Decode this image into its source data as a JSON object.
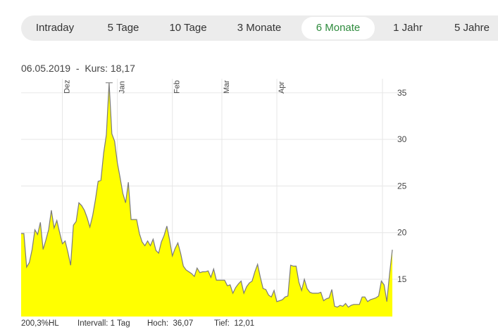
{
  "tabs": [
    {
      "label": "Intraday",
      "active": false
    },
    {
      "label": "5 Tage",
      "active": false
    },
    {
      "label": "10 Tage",
      "active": false
    },
    {
      "label": "3 Monate",
      "active": false
    },
    {
      "label": "6 Monate",
      "active": true
    },
    {
      "label": "1 Jahr",
      "active": false
    },
    {
      "label": "5 Jahre",
      "active": false
    }
  ],
  "info": {
    "date": "06.05.2019",
    "separator": "-",
    "kurs_label": "Kurs:",
    "kurs_value": "18,17"
  },
  "footer": {
    "change": "200,3%HL",
    "interval_label": "Intervall:",
    "interval_value": "1 Tag",
    "high_label": "Hoch:",
    "high_value": "36,07",
    "low_label": "Tief:",
    "low_value": "12,01"
  },
  "colors": {
    "fill": "#ffff00",
    "line": "#7a7a7a",
    "accent": "#2e8b3d",
    "tab_bg": "#ececec",
    "grid": "#e6e6e6"
  },
  "chart_data": {
    "type": "area",
    "ylim": [
      11,
      36.5
    ],
    "yticks": [
      15,
      20,
      25,
      30,
      35
    ],
    "ytick_labels": [
      "15",
      "20",
      "25",
      "30",
      "35"
    ],
    "month_labels": [
      {
        "label": "Dez",
        "index": 15
      },
      {
        "label": "Jan",
        "index": 35
      },
      {
        "label": "Feb",
        "index": 55
      },
      {
        "label": "Mar",
        "index": 73
      },
      {
        "label": "Apr",
        "index": 93
      }
    ],
    "values": [
      19.9,
      19.9,
      16.3,
      16.8,
      18.2,
      20.3,
      19.8,
      21.1,
      18.2,
      19.2,
      20.3,
      22.4,
      20.5,
      21.3,
      20.0,
      18.8,
      19.1,
      17.9,
      16.5,
      20.8,
      21.2,
      23.2,
      22.9,
      22.4,
      21.6,
      20.6,
      21.8,
      23.5,
      25.5,
      25.6,
      28.5,
      30.5,
      36.07,
      30.6,
      29.8,
      27.5,
      25.9,
      24.2,
      23.2,
      25.4,
      21.4,
      21.4,
      21.4,
      19.9,
      19.0,
      18.6,
      19.1,
      18.6,
      19.3,
      18.1,
      17.8,
      19.0,
      19.7,
      20.7,
      19.2,
      17.5,
      18.3,
      18.9,
      17.8,
      16.4,
      16.0,
      15.8,
      15.6,
      15.3,
      16.2,
      15.7,
      15.8,
      15.8,
      15.9,
      15.2,
      16.1,
      14.9,
      14.9,
      14.9,
      14.9,
      14.3,
      14.4,
      13.5,
      14.1,
      14.5,
      14.8,
      13.5,
      14.2,
      14.6,
      14.8,
      15.8,
      16.6,
      15.2,
      14.0,
      13.9,
      13.3,
      13.1,
      13.8,
      12.6,
      12.7,
      12.8,
      13.1,
      13.2,
      16.5,
      16.4,
      16.4,
      14.7,
      13.8,
      15.0,
      14.0,
      13.6,
      13.5,
      13.5,
      13.5,
      13.6,
      12.7,
      12.9,
      13.0,
      13.9,
      12.1,
      12.01,
      12.2,
      12.1,
      12.4,
      12.0,
      12.2,
      12.3,
      12.3,
      12.3,
      13.1,
      13.1,
      12.6,
      12.8,
      12.9,
      13.0,
      13.2,
      14.8,
      14.4,
      12.6,
      15.6,
      18.17
    ]
  }
}
